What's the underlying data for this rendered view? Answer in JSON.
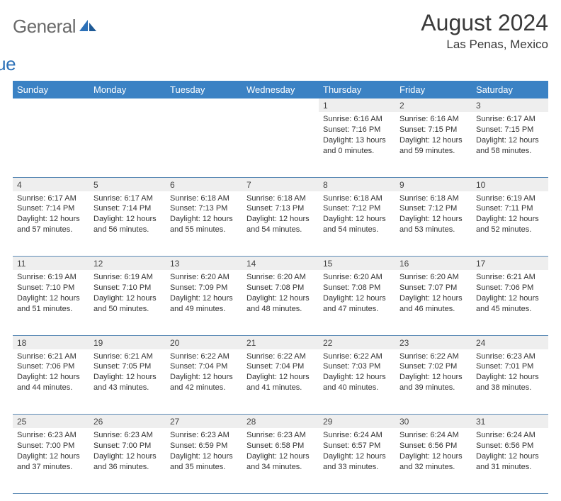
{
  "logo": {
    "text_gray": "General",
    "text_blue": "Blue"
  },
  "header": {
    "title": "August 2024",
    "location": "Las Penas, Mexico"
  },
  "weekdays": [
    "Sunday",
    "Monday",
    "Tuesday",
    "Wednesday",
    "Thursday",
    "Friday",
    "Saturday"
  ],
  "colors": {
    "header_bg": "#3b82c4",
    "header_text": "#ffffff",
    "daynum_bg": "#eeeeee",
    "rule": "#5b8ab5",
    "logo_gray": "#6a6a6a",
    "logo_blue": "#2c71b8"
  },
  "typography": {
    "title_fontsize": 32,
    "subtitle_fontsize": 17,
    "weekday_fontsize": 13,
    "daynum_fontsize": 12,
    "cell_fontsize": 11
  },
  "layout": {
    "columns": 7,
    "rows": 5,
    "first_weekday_index": 4
  },
  "days": [
    {
      "n": "1",
      "sr": "6:16 AM",
      "ss": "7:16 PM",
      "dl": "13 hours and 0 minutes."
    },
    {
      "n": "2",
      "sr": "6:16 AM",
      "ss": "7:15 PM",
      "dl": "12 hours and 59 minutes."
    },
    {
      "n": "3",
      "sr": "6:17 AM",
      "ss": "7:15 PM",
      "dl": "12 hours and 58 minutes."
    },
    {
      "n": "4",
      "sr": "6:17 AM",
      "ss": "7:14 PM",
      "dl": "12 hours and 57 minutes."
    },
    {
      "n": "5",
      "sr": "6:17 AM",
      "ss": "7:14 PM",
      "dl": "12 hours and 56 minutes."
    },
    {
      "n": "6",
      "sr": "6:18 AM",
      "ss": "7:13 PM",
      "dl": "12 hours and 55 minutes."
    },
    {
      "n": "7",
      "sr": "6:18 AM",
      "ss": "7:13 PM",
      "dl": "12 hours and 54 minutes."
    },
    {
      "n": "8",
      "sr": "6:18 AM",
      "ss": "7:12 PM",
      "dl": "12 hours and 54 minutes."
    },
    {
      "n": "9",
      "sr": "6:18 AM",
      "ss": "7:12 PM",
      "dl": "12 hours and 53 minutes."
    },
    {
      "n": "10",
      "sr": "6:19 AM",
      "ss": "7:11 PM",
      "dl": "12 hours and 52 minutes."
    },
    {
      "n": "11",
      "sr": "6:19 AM",
      "ss": "7:10 PM",
      "dl": "12 hours and 51 minutes."
    },
    {
      "n": "12",
      "sr": "6:19 AM",
      "ss": "7:10 PM",
      "dl": "12 hours and 50 minutes."
    },
    {
      "n": "13",
      "sr": "6:20 AM",
      "ss": "7:09 PM",
      "dl": "12 hours and 49 minutes."
    },
    {
      "n": "14",
      "sr": "6:20 AM",
      "ss": "7:08 PM",
      "dl": "12 hours and 48 minutes."
    },
    {
      "n": "15",
      "sr": "6:20 AM",
      "ss": "7:08 PM",
      "dl": "12 hours and 47 minutes."
    },
    {
      "n": "16",
      "sr": "6:20 AM",
      "ss": "7:07 PM",
      "dl": "12 hours and 46 minutes."
    },
    {
      "n": "17",
      "sr": "6:21 AM",
      "ss": "7:06 PM",
      "dl": "12 hours and 45 minutes."
    },
    {
      "n": "18",
      "sr": "6:21 AM",
      "ss": "7:06 PM",
      "dl": "12 hours and 44 minutes."
    },
    {
      "n": "19",
      "sr": "6:21 AM",
      "ss": "7:05 PM",
      "dl": "12 hours and 43 minutes."
    },
    {
      "n": "20",
      "sr": "6:22 AM",
      "ss": "7:04 PM",
      "dl": "12 hours and 42 minutes."
    },
    {
      "n": "21",
      "sr": "6:22 AM",
      "ss": "7:04 PM",
      "dl": "12 hours and 41 minutes."
    },
    {
      "n": "22",
      "sr": "6:22 AM",
      "ss": "7:03 PM",
      "dl": "12 hours and 40 minutes."
    },
    {
      "n": "23",
      "sr": "6:22 AM",
      "ss": "7:02 PM",
      "dl": "12 hours and 39 minutes."
    },
    {
      "n": "24",
      "sr": "6:23 AM",
      "ss": "7:01 PM",
      "dl": "12 hours and 38 minutes."
    },
    {
      "n": "25",
      "sr": "6:23 AM",
      "ss": "7:00 PM",
      "dl": "12 hours and 37 minutes."
    },
    {
      "n": "26",
      "sr": "6:23 AM",
      "ss": "7:00 PM",
      "dl": "12 hours and 36 minutes."
    },
    {
      "n": "27",
      "sr": "6:23 AM",
      "ss": "6:59 PM",
      "dl": "12 hours and 35 minutes."
    },
    {
      "n": "28",
      "sr": "6:23 AM",
      "ss": "6:58 PM",
      "dl": "12 hours and 34 minutes."
    },
    {
      "n": "29",
      "sr": "6:24 AM",
      "ss": "6:57 PM",
      "dl": "12 hours and 33 minutes."
    },
    {
      "n": "30",
      "sr": "6:24 AM",
      "ss": "6:56 PM",
      "dl": "12 hours and 32 minutes."
    },
    {
      "n": "31",
      "sr": "6:24 AM",
      "ss": "6:56 PM",
      "dl": "12 hours and 31 minutes."
    }
  ],
  "labels": {
    "sunrise": "Sunrise:",
    "sunset": "Sunset:",
    "daylight": "Daylight:"
  }
}
